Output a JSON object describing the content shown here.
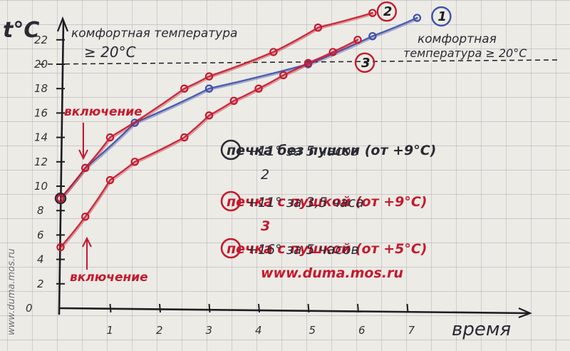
{
  "chart_data": {
    "type": "line",
    "ylabel": "t°C",
    "xlabel": "время",
    "xlim": [
      0,
      7.6
    ],
    "ylim": [
      0,
      24
    ],
    "x_ticks": [
      "1",
      "2",
      "3",
      "4",
      "5",
      "6",
      "7"
    ],
    "y_ticks": [
      "0",
      "2",
      "4",
      "6",
      "8",
      "10",
      "12",
      "14",
      "16",
      "18",
      "20",
      "22"
    ],
    "grid": true,
    "comfort_line": {
      "value": 20,
      "label_left": [
        "комфортная температура",
        "≥ 20°C"
      ],
      "label_right": [
        "комфортная",
        "температура ≥ 20°C"
      ]
    },
    "series": [
      {
        "name": "1",
        "color": "#3d4fa8",
        "x": [
          0,
          0.5,
          1.5,
          3,
          5,
          6.3,
          7.2
        ],
        "y": [
          9,
          11.5,
          15.2,
          18,
          20,
          22.3,
          23.8
        ]
      },
      {
        "name": "2",
        "color": "#c5192d",
        "x": [
          0,
          0.5,
          1,
          2.5,
          3,
          4.3,
          5.2,
          6.3
        ],
        "y": [
          9,
          11.5,
          14,
          18,
          19,
          21,
          23,
          24.2
        ]
      },
      {
        "name": "3",
        "color": "#c5192d",
        "x": [
          0,
          0.5,
          1,
          1.5,
          2.5,
          3,
          3.5,
          4,
          4.5,
          5,
          5.5,
          6
        ],
        "y": [
          5,
          7.5,
          10.5,
          12,
          14,
          15.8,
          17,
          18,
          19.1,
          20.1,
          21,
          22
        ]
      }
    ],
    "annotations": [
      "включение",
      "включение",
      "1",
      "печка без пушки (от +9°C)",
      "+11° за 5 часов",
      "2",
      "печка с пушкой (от +9°C)",
      "+11° за 3,5 часа",
      "3",
      "печка с пушкой (от +5°C)",
      "+16° за 5 часов",
      "www.duma.mos.ru"
    ]
  }
}
